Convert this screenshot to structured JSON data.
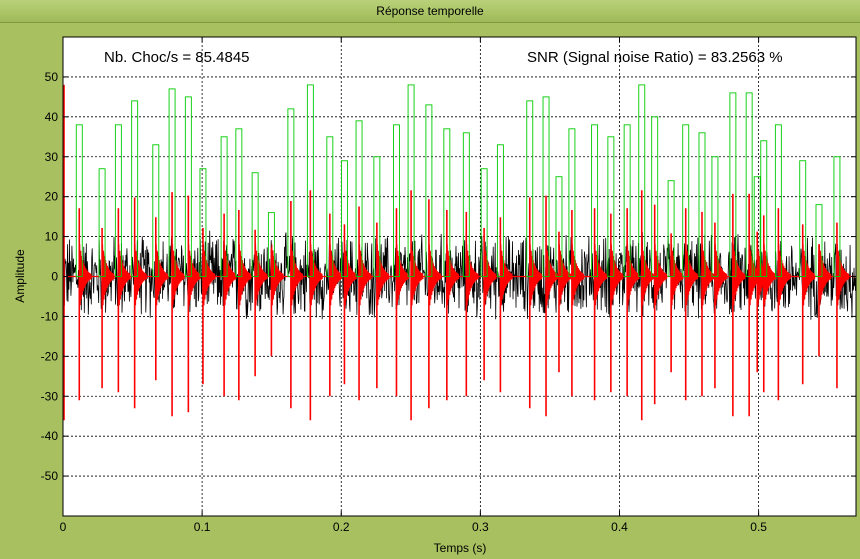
{
  "window": {
    "title": "Réponse temporelle"
  },
  "annotations": {
    "shocks": "Nb. Choc/s = 85.4845",
    "snr": "SNR (Signal noise Ratio) = 83.2563  %"
  },
  "colors": {
    "background": "#a8c060",
    "plot_area": "#ffffff",
    "noisy_signal": "#000000",
    "filtered_signal": "#ff0000",
    "peak_markers": "#00cc00"
  },
  "chart_data": {
    "type": "line",
    "title": "Réponse temporelle",
    "xlabel": "Temps (s)",
    "ylabel": "Amplitude",
    "xlim": [
      0,
      0.57
    ],
    "ylim": [
      -60,
      60
    ],
    "xticks": [
      0,
      0.1,
      0.2,
      0.3,
      0.4,
      0.5
    ],
    "xtick_labels": [
      "0",
      "0.1",
      "0.2",
      "0.3",
      "0.4",
      "0.5"
    ],
    "yticks": [
      -50,
      -40,
      -30,
      -20,
      -10,
      0,
      10,
      20,
      30,
      40,
      50
    ],
    "ytick_labels": [
      "-50",
      "-40",
      "-30",
      "-20",
      "-10",
      "0",
      "10",
      "20",
      "30",
      "40",
      "50"
    ],
    "grid": true,
    "shocks_per_second": 85.4845,
    "snr_percent": 83.2563,
    "series": [
      {
        "color": "#000000",
        "kind": "noisy signal",
        "noise_amplitude": 12
      },
      {
        "color": "#ff0000",
        "kind": "filtered impulses"
      },
      {
        "color": "#00cc00",
        "kind": "detected shock envelopes"
      }
    ],
    "shock_times": [
      0.0117,
      0.0281,
      0.0398,
      0.0515,
      0.0667,
      0.0784,
      0.0901,
      0.1006,
      0.1158,
      0.1264,
      0.1381,
      0.1498,
      0.1638,
      0.1778,
      0.1918,
      0.2023,
      0.2128,
      0.2256,
      0.2397,
      0.2502,
      0.263,
      0.2759,
      0.2899,
      0.3027,
      0.3144,
      0.3355,
      0.3472,
      0.3565,
      0.3658,
      0.3821,
      0.3938,
      0.4055,
      0.416,
      0.4253,
      0.4371,
      0.4476,
      0.4593,
      0.4686,
      0.4815,
      0.4932,
      0.499,
      0.5037,
      0.5142,
      0.5317,
      0.5434,
      0.5563
    ],
    "shock_peaks": [
      38,
      27,
      38,
      44,
      33,
      47,
      45,
      27,
      35,
      37,
      26,
      16,
      42,
      48,
      35,
      29,
      39,
      30,
      38,
      48,
      43,
      37,
      36,
      27,
      33,
      44,
      45,
      25,
      37,
      38,
      35,
      38,
      48,
      40,
      24,
      38,
      36,
      30,
      46,
      46,
      25,
      34,
      38,
      29,
      18,
      30
    ],
    "shock_negative_peaks": [
      -31,
      -28,
      -29,
      -33,
      -26,
      -35,
      -34,
      -27,
      -30,
      -31,
      -25,
      -20,
      -33,
      -36,
      -30,
      -27,
      -31,
      -28,
      -30,
      -36,
      -33,
      -31,
      -30,
      -26,
      -29,
      -33,
      -35,
      -24,
      -30,
      -31,
      -29,
      -30,
      -36,
      -32,
      -24,
      -31,
      -30,
      -28,
      -35,
      -35,
      -24,
      -29,
      -31,
      -27,
      -20,
      -28
    ]
  }
}
